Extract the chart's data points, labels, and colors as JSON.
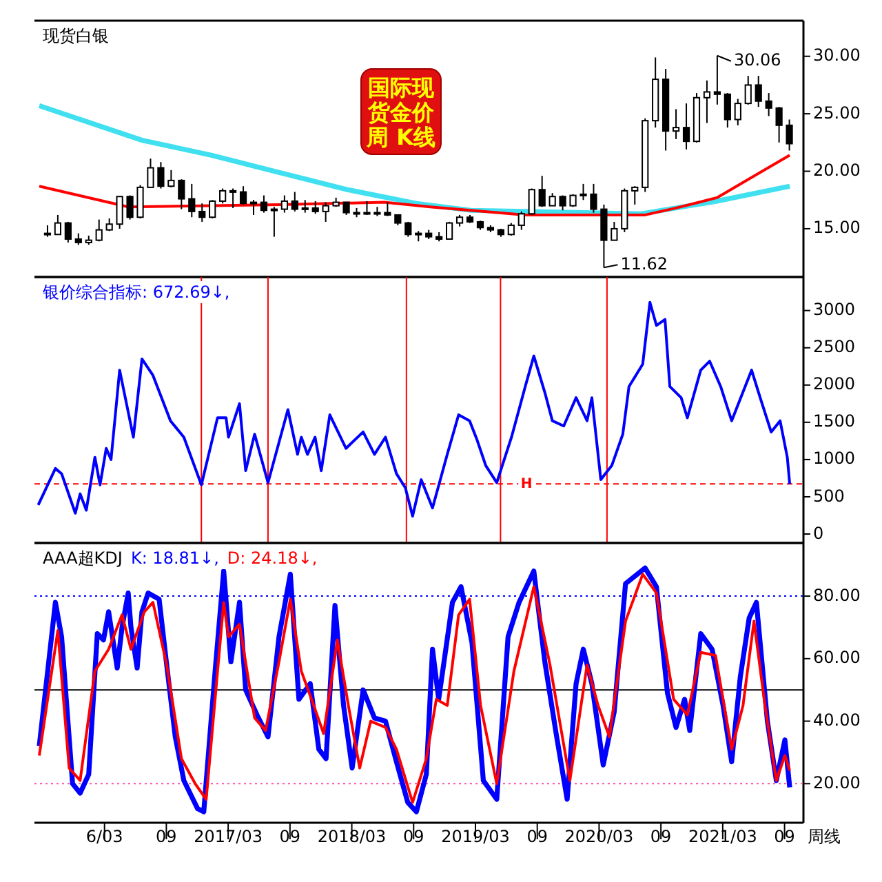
{
  "chart_data": [
    {
      "type": "candlestick",
      "title": "现货白银",
      "xlim": [
        "2015-08-07",
        "2021-10-26"
      ],
      "ylim": [
        10.8,
        33.1
      ],
      "tick_labels": "y",
      "yticks": [
        {
          "value": 15,
          "label": "15.00"
        },
        {
          "value": 20,
          "label": "20.00"
        },
        {
          "value": 25,
          "label": "25.00"
        },
        {
          "value": 30,
          "label": "30.00"
        }
      ],
      "x": [
        "2015-09-15",
        "2015-10-15",
        "2015-11-15",
        "2015-12-15",
        "2016-01-15",
        "2016-02-15",
        "2016-03-15",
        "2016-04-15",
        "2016-05-15",
        "2016-06-15",
        "2016-07-15",
        "2016-08-15",
        "2016-09-15",
        "2016-10-15",
        "2016-11-15",
        "2016-12-15",
        "2017-01-15",
        "2017-02-15",
        "2017-03-15",
        "2017-04-15",
        "2017-05-15",
        "2017-06-15",
        "2017-07-15",
        "2017-08-15",
        "2017-09-15",
        "2017-10-15",
        "2017-11-15",
        "2017-12-15",
        "2018-01-15",
        "2018-02-15",
        "2018-03-15",
        "2018-04-15",
        "2018-05-15",
        "2018-06-15",
        "2018-07-15",
        "2018-08-15",
        "2018-09-15",
        "2018-10-15",
        "2018-11-15",
        "2018-12-15",
        "2019-01-15",
        "2019-02-15",
        "2019-03-15",
        "2019-04-15",
        "2019-05-15",
        "2019-06-15",
        "2019-07-15",
        "2019-08-15",
        "2019-09-15",
        "2019-10-15",
        "2019-11-15",
        "2019-12-15",
        "2020-01-15",
        "2020-02-15",
        "2020-03-15",
        "2020-04-15",
        "2020-05-15",
        "2020-06-15",
        "2020-07-15",
        "2020-08-15",
        "2020-09-15",
        "2020-10-15",
        "2020-11-15",
        "2020-12-15",
        "2021-01-15",
        "2021-02-15",
        "2021-03-15",
        "2021-04-15",
        "2021-05-15",
        "2021-06-15",
        "2021-07-15",
        "2021-08-15",
        "2021-09-15"
      ],
      "ohlc": [
        [
          14.6,
          15.3,
          14.3,
          14.5
        ],
        [
          14.5,
          16.2,
          14.5,
          15.5
        ],
        [
          15.5,
          15.6,
          13.8,
          14.1
        ],
        [
          14.1,
          14.6,
          13.6,
          13.8
        ],
        [
          13.8,
          14.4,
          13.6,
          14.0
        ],
        [
          14.0,
          15.8,
          13.9,
          14.9
        ],
        [
          14.9,
          15.9,
          14.8,
          15.4
        ],
        [
          15.4,
          17.8,
          15.0,
          17.8
        ],
        [
          17.8,
          17.9,
          15.8,
          16.0
        ],
        [
          16.0,
          18.8,
          15.9,
          18.6
        ],
        [
          18.6,
          21.1,
          18.6,
          20.3
        ],
        [
          20.3,
          20.8,
          18.5,
          18.7
        ],
        [
          18.7,
          20.1,
          18.6,
          19.2
        ],
        [
          19.2,
          19.3,
          16.7,
          17.6
        ],
        [
          17.6,
          18.9,
          16.0,
          16.5
        ],
        [
          16.5,
          17.2,
          15.6,
          16.0
        ],
        [
          16.0,
          17.5,
          15.9,
          17.4
        ],
        [
          17.4,
          18.5,
          17.2,
          18.3
        ],
        [
          18.3,
          18.5,
          16.8,
          18.2
        ],
        [
          18.2,
          18.7,
          17.1,
          17.2
        ],
        [
          17.2,
          17.5,
          16.2,
          17.3
        ],
        [
          17.3,
          17.9,
          16.4,
          16.6
        ],
        [
          16.6,
          16.9,
          14.3,
          16.7
        ],
        [
          16.7,
          17.9,
          16.4,
          17.4
        ],
        [
          17.4,
          18.2,
          16.5,
          16.7
        ],
        [
          16.7,
          17.5,
          16.4,
          16.8
        ],
        [
          16.8,
          17.4,
          16.3,
          16.5
        ],
        [
          16.5,
          17.3,
          15.6,
          17.0
        ],
        [
          17.0,
          17.7,
          16.9,
          17.3
        ],
        [
          17.3,
          17.3,
          16.2,
          16.4
        ],
        [
          16.4,
          16.8,
          16.0,
          16.3
        ],
        [
          16.3,
          17.4,
          16.2,
          16.4
        ],
        [
          16.4,
          16.9,
          16.1,
          16.4
        ],
        [
          16.4,
          17.3,
          16.1,
          16.2
        ],
        [
          16.2,
          16.2,
          15.3,
          15.5
        ],
        [
          15.5,
          15.6,
          14.3,
          14.5
        ],
        [
          14.5,
          14.8,
          13.9,
          14.6
        ],
        [
          14.6,
          14.9,
          14.1,
          14.3
        ],
        [
          14.3,
          14.7,
          13.9,
          14.1
        ],
        [
          14.1,
          15.6,
          14.1,
          15.5
        ],
        [
          15.5,
          16.2,
          15.2,
          16.0
        ],
        [
          16.0,
          16.2,
          15.5,
          15.6
        ],
        [
          15.6,
          15.7,
          14.9,
          15.1
        ],
        [
          15.1,
          15.3,
          14.7,
          14.9
        ],
        [
          14.9,
          15.0,
          14.3,
          14.5
        ],
        [
          14.5,
          15.5,
          14.4,
          15.3
        ],
        [
          15.3,
          16.5,
          14.9,
          16.3
        ],
        [
          16.3,
          18.5,
          16.2,
          18.4
        ],
        [
          18.4,
          19.6,
          16.9,
          17.0
        ],
        [
          17.0,
          18.1,
          17.0,
          17.8
        ],
        [
          17.8,
          17.9,
          16.6,
          17.0
        ],
        [
          17.0,
          18.0,
          16.9,
          17.9
        ],
        [
          17.9,
          18.9,
          17.5,
          18.0
        ],
        [
          18.0,
          18.9,
          16.4,
          16.7
        ],
        [
          16.7,
          17.1,
          11.62,
          14.0
        ],
        [
          14.0,
          15.6,
          14.0,
          15.0
        ],
        [
          15.0,
          18.5,
          14.7,
          18.3
        ],
        [
          18.3,
          18.7,
          17.1,
          18.6
        ],
        [
          18.6,
          24.6,
          18.2,
          24.4
        ],
        [
          24.4,
          29.9,
          23.8,
          28.0
        ],
        [
          28.0,
          28.9,
          21.8,
          23.5
        ],
        [
          23.5,
          25.4,
          22.8,
          23.8
        ],
        [
          23.8,
          25.9,
          21.9,
          22.6
        ],
        [
          22.6,
          26.8,
          22.5,
          26.4
        ],
        [
          26.4,
          27.9,
          24.2,
          26.9
        ],
        [
          26.9,
          30.06,
          25.8,
          26.7
        ],
        [
          26.7,
          26.8,
          23.8,
          24.5
        ],
        [
          24.5,
          26.3,
          24.0,
          25.9
        ],
        [
          25.9,
          28.3,
          25.8,
          27.5
        ],
        [
          27.5,
          28.3,
          25.6,
          26.1
        ],
        [
          26.1,
          26.8,
          24.8,
          25.5
        ],
        [
          25.5,
          25.6,
          22.5,
          24.0
        ],
        [
          24.0,
          24.5,
          21.8,
          22.4
        ]
      ],
      "series": [
        {
          "type": "line",
          "color": "#40e0f0",
          "x": [
            "2015-08-21",
            "2016-06-20",
            "2017-01-12",
            "2017-07-29",
            "2018-02-18",
            "2018-09-09",
            "2019-02-18",
            "2019-07-26",
            "2020-07-04",
            "2021-02-14",
            "2021-09-16"
          ],
          "values": [
            25.7,
            22.7,
            21.4,
            19.9,
            18.4,
            17.2,
            16.6,
            16.5,
            16.3,
            17.4,
            18.7
          ]
        },
        {
          "type": "line",
          "color": "#ff0000",
          "x": [
            "2015-08-21",
            "2016-05-10",
            "2017-01-12",
            "2017-07-29",
            "2018-06-06",
            "2018-10-19",
            "2019-07-26",
            "2020-07-15",
            "2020-10-15",
            "2021-02-14",
            "2021-09-16"
          ],
          "values": [
            18.7,
            16.9,
            17.0,
            17.1,
            17.3,
            16.9,
            16.2,
            16.2,
            16.8,
            17.7,
            21.4
          ]
        }
      ],
      "annotations": [
        "国际现货金价周 K线",
        {
          "text": "30.06",
          "x": "2021-02-15",
          "y": 30.06
        },
        {
          "text": "11.62",
          "x": "2020-03-15",
          "y": 11.62
        }
      ]
    },
    {
      "type": "line",
      "xlim": [
        "2015-08-07",
        "2021-10-26"
      ],
      "ylim": [
        -120,
        3450
      ],
      "tick_labels": "y",
      "yticks": [
        0,
        500,
        1000,
        1500,
        2000,
        2500,
        3000
      ],
      "legend": "top left",
      "series": [
        {
          "name": "银价综合指标: 672.69↓,",
          "color": "#0000ff",
          "x": [
            "2015-08-18",
            "2015-10-08",
            "2015-10-26",
            "2015-12-06",
            "2015-12-20",
            "2016-01-08",
            "2016-02-03",
            "2016-02-18",
            "2016-03-06",
            "2016-03-20",
            "2016-04-15",
            "2016-05-25",
            "2016-06-20",
            "2016-07-22",
            "2016-09-13",
            "2016-10-22",
            "2016-12-13",
            "2017-01-30",
            "2017-02-25",
            "2017-03-02",
            "2017-04-04",
            "2017-04-22",
            "2017-05-18",
            "2017-06-27",
            "2017-08-25",
            "2017-09-23",
            "2017-10-04",
            "2017-10-22",
            "2017-11-14",
            "2017-12-02",
            "2017-12-27",
            "2018-02-14",
            "2018-04-04",
            "2018-05-07",
            "2018-06-09",
            "2018-07-11",
            "2018-08-07",
            "2018-08-28",
            "2018-09-23",
            "2018-10-26",
            "2018-12-09",
            "2019-01-12",
            "2019-02-14",
            "2019-03-06",
            "2019-04-01",
            "2019-05-03",
            "2019-06-16",
            "2019-07-26",
            "2019-08-21",
            "2019-09-23",
            "2019-10-15",
            "2019-11-18",
            "2019-12-24",
            "2020-01-26",
            "2020-02-10",
            "2020-03-06",
            "2020-04-08",
            "2020-05-10",
            "2020-05-28",
            "2020-07-08",
            "2020-07-29",
            "2020-08-18",
            "2020-09-13",
            "2020-09-27",
            "2020-10-30",
            "2020-11-18",
            "2020-12-27",
            "2021-01-23",
            "2021-02-25",
            "2021-03-27",
            "2021-05-25",
            "2021-06-20",
            "2021-07-22",
            "2021-08-18",
            "2021-09-09",
            "2021-09-16"
          ],
          "values": [
            390,
            880,
            810,
            280,
            540,
            320,
            1030,
            660,
            1150,
            1000,
            2200,
            1300,
            2350,
            2130,
            1520,
            1300,
            660,
            1560,
            1560,
            1300,
            1750,
            850,
            1340,
            690,
            1670,
            1070,
            1300,
            1070,
            1300,
            850,
            1600,
            1150,
            1370,
            1070,
            1300,
            810,
            620,
            240,
            730,
            350,
            1070,
            1600,
            1520,
            1260,
            920,
            690,
            1300,
            1980,
            2390,
            1900,
            1520,
            1450,
            1830,
            1520,
            1830,
            730,
            920,
            1340,
            1980,
            2280,
            3110,
            2800,
            2880,
            1980,
            1830,
            1560,
            2200,
            2320,
            1980,
            1520,
            2200,
            1830,
            1370,
            1520,
            1030,
            672.69
          ]
        }
      ],
      "ref_lines": [
        {
          "axis": "y",
          "value": 672.69,
          "label": "H",
          "color": "#ff0000",
          "line_style": "dashed"
        },
        {
          "axis": "x",
          "value": "2016-12-13",
          "color": "#ff0000"
        },
        {
          "axis": "x",
          "value": "2017-06-27",
          "color": "#ff0000"
        },
        {
          "axis": "x",
          "value": "2018-08-10",
          "color": "#ff0000"
        },
        {
          "axis": "x",
          "value": "2019-05-14",
          "color": "#ff0000"
        },
        {
          "axis": "x",
          "value": "2020-03-24",
          "color": "#ff0000"
        }
      ]
    },
    {
      "type": "line",
      "title": "AAA超KDJ",
      "xlabel": "周线",
      "xlim": [
        "2015-08-07",
        "2021-10-26"
      ],
      "ylim": [
        7.5,
        97
      ],
      "legend": "top left",
      "yticks": [
        {
          "value": 20,
          "label": "20.00"
        },
        {
          "value": 40,
          "label": "40.00"
        },
        {
          "value": 60,
          "label": "60.00"
        },
        {
          "value": 80,
          "label": "80.00"
        }
      ],
      "xticks": [
        {
          "value": "2016-03-01",
          "label": "6/03"
        },
        {
          "value": "2016-09-01",
          "label": "09"
        },
        {
          "value": "2017-03-01",
          "label": "2017/03"
        },
        {
          "value": "2017-09-01",
          "label": "09"
        },
        {
          "value": "2018-03-01",
          "label": "2018/03"
        },
        {
          "value": "2018-09-01",
          "label": "09"
        },
        {
          "value": "2019-03-01",
          "label": "2019/03"
        },
        {
          "value": "2019-09-01",
          "label": "09"
        },
        {
          "value": "2020-03-01",
          "label": "2020/03"
        },
        {
          "value": "2020-09-01",
          "label": "09"
        },
        {
          "value": "2021-03-01",
          "label": "2021/03"
        },
        {
          "value": "2021-09-01",
          "label": "09"
        }
      ],
      "series": [
        {
          "name": "K: 18.81↓,",
          "color": "#0000ff",
          "x": [
            "2015-08-21",
            "2015-10-08",
            "2015-10-26",
            "2015-11-28",
            "2015-12-20",
            "2016-01-15",
            "2016-02-10",
            "2016-02-28",
            "2016-03-13",
            "2016-04-08",
            "2016-04-22",
            "2016-05-10",
            "2016-05-18",
            "2016-06-06",
            "2016-06-20",
            "2016-07-08",
            "2016-08-10",
            "2016-09-02",
            "2016-09-27",
            "2016-10-22",
            "2016-12-02",
            "2016-12-20",
            "2017-01-23",
            "2017-02-18",
            "2017-03-09",
            "2017-04-04",
            "2017-04-22",
            "2017-05-25",
            "2017-06-27",
            "2017-07-29",
            "2017-09-02",
            "2017-09-27",
            "2017-10-30",
            "2017-11-25",
            "2017-12-16",
            "2018-01-12",
            "2018-02-07",
            "2018-03-02",
            "2018-04-04",
            "2018-05-07",
            "2018-06-09",
            "2018-07-11",
            "2018-08-14",
            "2018-09-09",
            "2018-10-08",
            "2018-10-26",
            "2018-11-14",
            "2018-12-24",
            "2019-01-19",
            "2019-02-21",
            "2019-03-24",
            "2019-05-03",
            "2019-06-06",
            "2019-07-08",
            "2019-08-21",
            "2019-09-23",
            "2019-10-26",
            "2019-11-28",
            "2019-12-24",
            "2020-01-15",
            "2020-02-10",
            "2020-03-13",
            "2020-04-15",
            "2020-05-18",
            "2020-07-15",
            "2020-08-18",
            "2020-09-20",
            "2020-10-15",
            "2020-11-10",
            "2020-11-25",
            "2020-12-27",
            "2021-01-30",
            "2021-03-02",
            "2021-03-27",
            "2021-04-22",
            "2021-05-18",
            "2021-06-09",
            "2021-07-11",
            "2021-08-07",
            "2021-09-02",
            "2021-09-16"
          ],
          "values": [
            32,
            78,
            67,
            20,
            17,
            23,
            68,
            66,
            75,
            57,
            70,
            81,
            70,
            57,
            75,
            81,
            79,
            58,
            35,
            21,
            12,
            11,
            56,
            88,
            59,
            78,
            50,
            42,
            35,
            67,
            87,
            47,
            52,
            31,
            28,
            77,
            45,
            25,
            50,
            41,
            40,
            27,
            14,
            11,
            23,
            63,
            47,
            78,
            83,
            65,
            21,
            15,
            67,
            78,
            88,
            59,
            36,
            15,
            52,
            63,
            52,
            26,
            43,
            84,
            89,
            83,
            49,
            38,
            47,
            37,
            68,
            63,
            45,
            27,
            54,
            73,
            78,
            40,
            21,
            34,
            18.81
          ]
        },
        {
          "name": "D: 24.18↓,",
          "color": "#ff0000",
          "x": [
            "2015-08-21",
            "2015-10-15",
            "2015-11-18",
            "2015-12-20",
            "2016-02-03",
            "2016-03-13",
            "2016-04-22",
            "2016-05-18",
            "2016-06-27",
            "2016-07-22",
            "2016-09-02",
            "2016-10-15",
            "2016-11-25",
            "2016-12-27",
            "2017-02-18",
            "2017-03-02",
            "2017-04-04",
            "2017-05-18",
            "2017-06-20",
            "2017-07-29",
            "2017-09-02",
            "2017-10-04",
            "2017-11-07",
            "2017-12-09",
            "2018-01-19",
            "2018-02-21",
            "2018-03-24",
            "2018-04-26",
            "2018-06-09",
            "2018-07-11",
            "2018-08-28",
            "2018-10-08",
            "2018-11-07",
            "2018-12-09",
            "2019-01-12",
            "2019-02-14",
            "2019-03-16",
            "2019-05-03",
            "2019-06-23",
            "2019-08-21",
            "2019-10-08",
            "2019-12-06",
            "2020-01-26",
            "2020-02-28",
            "2020-04-01",
            "2020-05-18",
            "2020-07-08",
            "2020-08-18",
            "2020-10-08",
            "2020-11-18",
            "2020-12-27",
            "2021-02-10",
            "2021-03-27",
            "2021-04-30",
            "2021-06-02",
            "2021-07-04",
            "2021-08-07",
            "2021-09-02",
            "2021-09-16"
          ],
          "values": [
            29,
            69,
            25,
            21,
            56,
            63,
            74,
            63,
            75,
            78,
            58,
            28,
            20,
            15,
            78,
            67,
            71,
            41,
            37,
            59,
            79,
            56,
            46,
            36,
            66,
            45,
            25,
            40,
            38,
            31,
            14,
            28,
            47,
            45,
            74,
            79,
            45,
            20,
            56,
            83,
            58,
            21,
            58,
            45,
            35,
            72,
            87,
            81,
            47,
            42,
            62,
            61,
            31,
            45,
            72,
            45,
            21,
            29,
            24.18
          ]
        }
      ],
      "ref_lines": [
        {
          "axis": "y",
          "value": 80,
          "color": "#0000ff",
          "line_style": "dotted"
        },
        {
          "axis": "y",
          "value": 50,
          "color": "#000000",
          "line_style": "solid"
        },
        {
          "axis": "y",
          "value": 20,
          "color": "#ff4fa0",
          "line_style": "dotted"
        }
      ]
    }
  ]
}
